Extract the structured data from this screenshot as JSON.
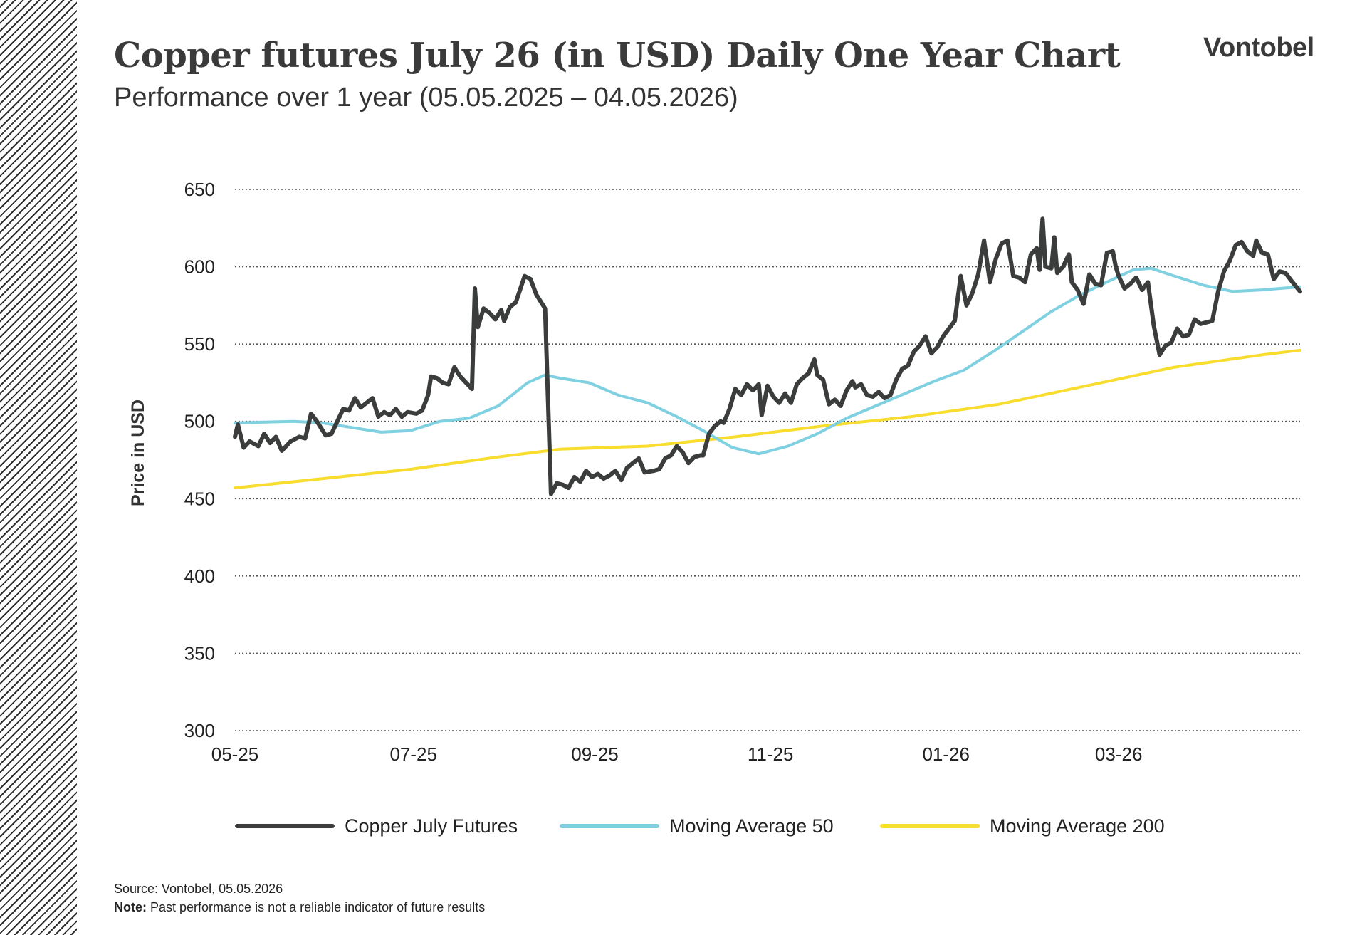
{
  "header": {
    "title": "Copper futures July 26 (in USD) Daily One Year Chart",
    "subtitle": "Performance over 1 year (05.05.2025 – 04.05.2026)",
    "logo_text": "Vontobel"
  },
  "footer": {
    "source": "Source: Vontobel, 05.05.2026",
    "note_label": "Note:",
    "note_text": " Past performance is not a reliable indicator of future results"
  },
  "colors": {
    "price": "#3a3d3c",
    "ma50": "#7fd0e0",
    "ma200": "#f8dc2e",
    "grid": "#555555",
    "text": "#222222"
  },
  "chart_data": {
    "type": "line",
    "ylabel": "Price in USD",
    "xlabel": "",
    "ylim": [
      300,
      650
    ],
    "yticks": [
      300,
      350,
      400,
      450,
      500,
      550,
      600,
      650
    ],
    "xlim": [
      "2025-05-05",
      "2026-05-04"
    ],
    "xticks": [
      {
        "label": "05-25",
        "date": "2025-05-05"
      },
      {
        "label": "07-25",
        "date": "2025-07-05"
      },
      {
        "label": "09-25",
        "date": "2025-09-05"
      },
      {
        "label": "11-25",
        "date": "2025-11-04"
      },
      {
        "label": "01-26",
        "date": "2026-01-03"
      },
      {
        "label": "03-26",
        "date": "2026-03-03"
      }
    ],
    "grid": "horizontal-dotted",
    "legend_position": "bottom",
    "series": [
      {
        "name": "Copper July Futures",
        "color": "#3a3d3c",
        "points": [
          [
            "2025-05-05",
            490
          ],
          [
            "2025-05-06",
            498
          ],
          [
            "2025-05-08",
            483
          ],
          [
            "2025-05-10",
            487
          ],
          [
            "2025-05-13",
            484
          ],
          [
            "2025-05-15",
            492
          ],
          [
            "2025-05-17",
            486
          ],
          [
            "2025-05-19",
            490
          ],
          [
            "2025-05-21",
            481
          ],
          [
            "2025-05-24",
            487
          ],
          [
            "2025-05-27",
            490
          ],
          [
            "2025-05-29",
            489
          ],
          [
            "2025-05-31",
            505
          ],
          [
            "2025-06-02",
            500
          ],
          [
            "2025-06-05",
            491
          ],
          [
            "2025-06-07",
            492
          ],
          [
            "2025-06-09",
            500
          ],
          [
            "2025-06-11",
            508
          ],
          [
            "2025-06-13",
            507
          ],
          [
            "2025-06-15",
            515
          ],
          [
            "2025-06-17",
            509
          ],
          [
            "2025-06-19",
            512
          ],
          [
            "2025-06-21",
            515
          ],
          [
            "2025-06-23",
            503
          ],
          [
            "2025-06-25",
            506
          ],
          [
            "2025-06-27",
            504
          ],
          [
            "2025-06-29",
            508
          ],
          [
            "2025-07-01",
            503
          ],
          [
            "2025-07-03",
            506
          ],
          [
            "2025-07-06",
            505
          ],
          [
            "2025-07-08",
            507
          ],
          [
            "2025-07-10",
            517
          ],
          [
            "2025-07-11",
            529
          ],
          [
            "2025-07-13",
            528
          ],
          [
            "2025-07-15",
            525
          ],
          [
            "2025-07-17",
            524
          ],
          [
            "2025-07-19",
            535
          ],
          [
            "2025-07-21",
            529
          ],
          [
            "2025-07-23",
            525
          ],
          [
            "2025-07-25",
            521
          ],
          [
            "2025-07-26",
            586
          ],
          [
            "2025-07-27",
            561
          ],
          [
            "2025-07-29",
            573
          ],
          [
            "2025-07-31",
            570
          ],
          [
            "2025-08-02",
            566
          ],
          [
            "2025-08-04",
            572
          ],
          [
            "2025-08-05",
            565
          ],
          [
            "2025-08-07",
            574
          ],
          [
            "2025-08-09",
            577
          ],
          [
            "2025-08-12",
            594
          ],
          [
            "2025-08-14",
            592
          ],
          [
            "2025-08-16",
            582
          ],
          [
            "2025-08-18",
            576
          ],
          [
            "2025-08-19",
            573
          ],
          [
            "2025-08-21",
            453
          ],
          [
            "2025-08-23",
            460
          ],
          [
            "2025-08-25",
            459
          ],
          [
            "2025-08-27",
            457
          ],
          [
            "2025-08-29",
            464
          ],
          [
            "2025-08-31",
            461
          ],
          [
            "2025-09-02",
            468
          ],
          [
            "2025-09-04",
            464
          ],
          [
            "2025-09-06",
            466
          ],
          [
            "2025-09-08",
            463
          ],
          [
            "2025-09-10",
            465
          ],
          [
            "2025-09-12",
            468
          ],
          [
            "2025-09-14",
            462
          ],
          [
            "2025-09-16",
            470
          ],
          [
            "2025-09-18",
            473
          ],
          [
            "2025-09-20",
            476
          ],
          [
            "2025-09-22",
            467
          ],
          [
            "2025-09-25",
            468
          ],
          [
            "2025-09-27",
            469
          ],
          [
            "2025-09-29",
            476
          ],
          [
            "2025-10-01",
            478
          ],
          [
            "2025-10-03",
            484
          ],
          [
            "2025-10-05",
            480
          ],
          [
            "2025-10-07",
            473
          ],
          [
            "2025-10-09",
            477
          ],
          [
            "2025-10-11",
            478
          ],
          [
            "2025-10-12",
            478
          ],
          [
            "2025-10-14",
            492
          ],
          [
            "2025-10-16",
            497
          ],
          [
            "2025-10-18",
            500
          ],
          [
            "2025-10-19",
            499
          ],
          [
            "2025-10-21",
            508
          ],
          [
            "2025-10-23",
            521
          ],
          [
            "2025-10-25",
            517
          ],
          [
            "2025-10-27",
            524
          ],
          [
            "2025-10-29",
            520
          ],
          [
            "2025-10-31",
            524
          ],
          [
            "2025-11-01",
            504
          ],
          [
            "2025-11-03",
            523
          ],
          [
            "2025-11-05",
            516
          ],
          [
            "2025-11-07",
            512
          ],
          [
            "2025-11-09",
            518
          ],
          [
            "2025-11-11",
            512
          ],
          [
            "2025-11-13",
            524
          ],
          [
            "2025-11-15",
            528
          ],
          [
            "2025-11-17",
            531
          ],
          [
            "2025-11-19",
            540
          ],
          [
            "2025-11-20",
            530
          ],
          [
            "2025-11-22",
            527
          ],
          [
            "2025-11-24",
            511
          ],
          [
            "2025-11-26",
            514
          ],
          [
            "2025-11-28",
            510
          ],
          [
            "2025-11-30",
            520
          ],
          [
            "2025-12-02",
            526
          ],
          [
            "2025-12-03",
            522
          ],
          [
            "2025-12-05",
            524
          ],
          [
            "2025-12-07",
            517
          ],
          [
            "2025-12-09",
            516
          ],
          [
            "2025-12-11",
            519
          ],
          [
            "2025-12-13",
            515
          ],
          [
            "2025-12-15",
            517
          ],
          [
            "2025-12-17",
            527
          ],
          [
            "2025-12-19",
            534
          ],
          [
            "2025-12-21",
            536
          ],
          [
            "2025-12-23",
            545
          ],
          [
            "2025-12-25",
            549
          ],
          [
            "2025-12-27",
            555
          ],
          [
            "2025-12-29",
            544
          ],
          [
            "2025-12-31",
            548
          ],
          [
            "2026-01-02",
            555
          ],
          [
            "2026-01-04",
            560
          ],
          [
            "2026-01-06",
            565
          ],
          [
            "2026-01-08",
            594
          ],
          [
            "2026-01-10",
            575
          ],
          [
            "2026-01-12",
            583
          ],
          [
            "2026-01-14",
            595
          ],
          [
            "2026-01-16",
            617
          ],
          [
            "2026-01-18",
            590
          ],
          [
            "2026-01-20",
            605
          ],
          [
            "2026-01-22",
            615
          ],
          [
            "2026-01-24",
            617
          ],
          [
            "2026-01-26",
            594
          ],
          [
            "2026-01-28",
            593
          ],
          [
            "2026-01-30",
            590
          ],
          [
            "2026-02-01",
            608
          ],
          [
            "2026-02-03",
            612
          ],
          [
            "2026-02-04",
            598
          ],
          [
            "2026-02-05",
            631
          ],
          [
            "2026-02-06",
            600
          ],
          [
            "2026-02-08",
            599
          ],
          [
            "2026-02-09",
            619
          ],
          [
            "2026-02-10",
            596
          ],
          [
            "2026-02-12",
            600
          ],
          [
            "2026-02-14",
            608
          ],
          [
            "2026-02-15",
            590
          ],
          [
            "2026-02-17",
            585
          ],
          [
            "2026-02-19",
            576
          ],
          [
            "2026-02-21",
            595
          ],
          [
            "2026-02-23",
            589
          ],
          [
            "2026-02-25",
            588
          ],
          [
            "2026-02-27",
            609
          ],
          [
            "2026-03-01",
            610
          ],
          [
            "2026-03-02",
            600
          ],
          [
            "2026-03-03",
            594
          ],
          [
            "2026-03-05",
            586
          ],
          [
            "2026-03-07",
            589
          ],
          [
            "2026-03-09",
            593
          ],
          [
            "2026-03-11",
            585
          ],
          [
            "2026-03-13",
            590
          ],
          [
            "2026-03-15",
            562
          ],
          [
            "2026-03-17",
            543
          ],
          [
            "2026-03-19",
            549
          ],
          [
            "2026-03-21",
            551
          ],
          [
            "2026-03-23",
            560
          ],
          [
            "2026-03-25",
            555
          ],
          [
            "2026-03-27",
            556
          ],
          [
            "2026-03-29",
            566
          ],
          [
            "2026-03-31",
            563
          ],
          [
            "2026-04-02",
            564
          ],
          [
            "2026-04-04",
            565
          ],
          [
            "2026-04-06",
            584
          ],
          [
            "2026-04-08",
            597
          ],
          [
            "2026-04-10",
            604
          ],
          [
            "2026-04-12",
            614
          ],
          [
            "2026-04-14",
            616
          ],
          [
            "2026-04-16",
            610
          ],
          [
            "2026-04-18",
            607
          ],
          [
            "2026-04-19",
            617
          ],
          [
            "2026-04-21",
            609
          ],
          [
            "2026-04-23",
            608
          ],
          [
            "2026-04-25",
            592
          ],
          [
            "2026-04-27",
            597
          ],
          [
            "2026-04-29",
            596
          ],
          [
            "2026-05-01",
            591
          ],
          [
            "2026-05-04",
            584
          ]
        ]
      },
      {
        "name": "Moving Average 50",
        "color": "#7fd0e0",
        "points": [
          [
            "2025-05-05",
            499
          ],
          [
            "2025-05-25",
            500
          ],
          [
            "2025-06-04",
            499
          ],
          [
            "2025-06-14",
            496
          ],
          [
            "2025-06-24",
            493
          ],
          [
            "2025-07-04",
            494
          ],
          [
            "2025-07-14",
            500
          ],
          [
            "2025-07-24",
            502
          ],
          [
            "2025-08-03",
            510
          ],
          [
            "2025-08-13",
            525
          ],
          [
            "2025-08-19",
            530
          ],
          [
            "2025-08-24",
            528
          ],
          [
            "2025-09-03",
            525
          ],
          [
            "2025-09-13",
            517
          ],
          [
            "2025-09-23",
            512
          ],
          [
            "2025-10-03",
            503
          ],
          [
            "2025-10-12",
            494
          ],
          [
            "2025-10-22",
            483
          ],
          [
            "2025-10-31",
            479
          ],
          [
            "2025-11-10",
            484
          ],
          [
            "2025-11-20",
            492
          ],
          [
            "2025-11-30",
            502
          ],
          [
            "2025-12-10",
            510
          ],
          [
            "2025-12-20",
            518
          ],
          [
            "2025-12-30",
            526
          ],
          [
            "2026-01-09",
            533
          ],
          [
            "2026-01-19",
            545
          ],
          [
            "2026-01-29",
            558
          ],
          [
            "2026-02-08",
            571
          ],
          [
            "2026-02-18",
            582
          ],
          [
            "2026-02-28",
            591
          ],
          [
            "2026-03-08",
            598
          ],
          [
            "2026-03-14",
            599
          ],
          [
            "2026-03-22",
            594
          ],
          [
            "2026-04-01",
            588
          ],
          [
            "2026-04-11",
            584
          ],
          [
            "2026-04-21",
            585
          ],
          [
            "2026-05-04",
            587
          ]
        ]
      },
      {
        "name": "Moving Average 200",
        "color": "#f8dc2e",
        "points": [
          [
            "2025-05-05",
            457
          ],
          [
            "2025-06-04",
            463
          ],
          [
            "2025-07-04",
            469
          ],
          [
            "2025-08-03",
            477
          ],
          [
            "2025-08-24",
            482
          ],
          [
            "2025-09-23",
            484
          ],
          [
            "2025-10-23",
            490
          ],
          [
            "2025-11-22",
            497
          ],
          [
            "2025-12-22",
            503
          ],
          [
            "2026-01-21",
            511
          ],
          [
            "2026-02-20",
            523
          ],
          [
            "2026-03-22",
            535
          ],
          [
            "2026-04-21",
            543
          ],
          [
            "2026-05-04",
            546
          ]
        ]
      }
    ]
  }
}
